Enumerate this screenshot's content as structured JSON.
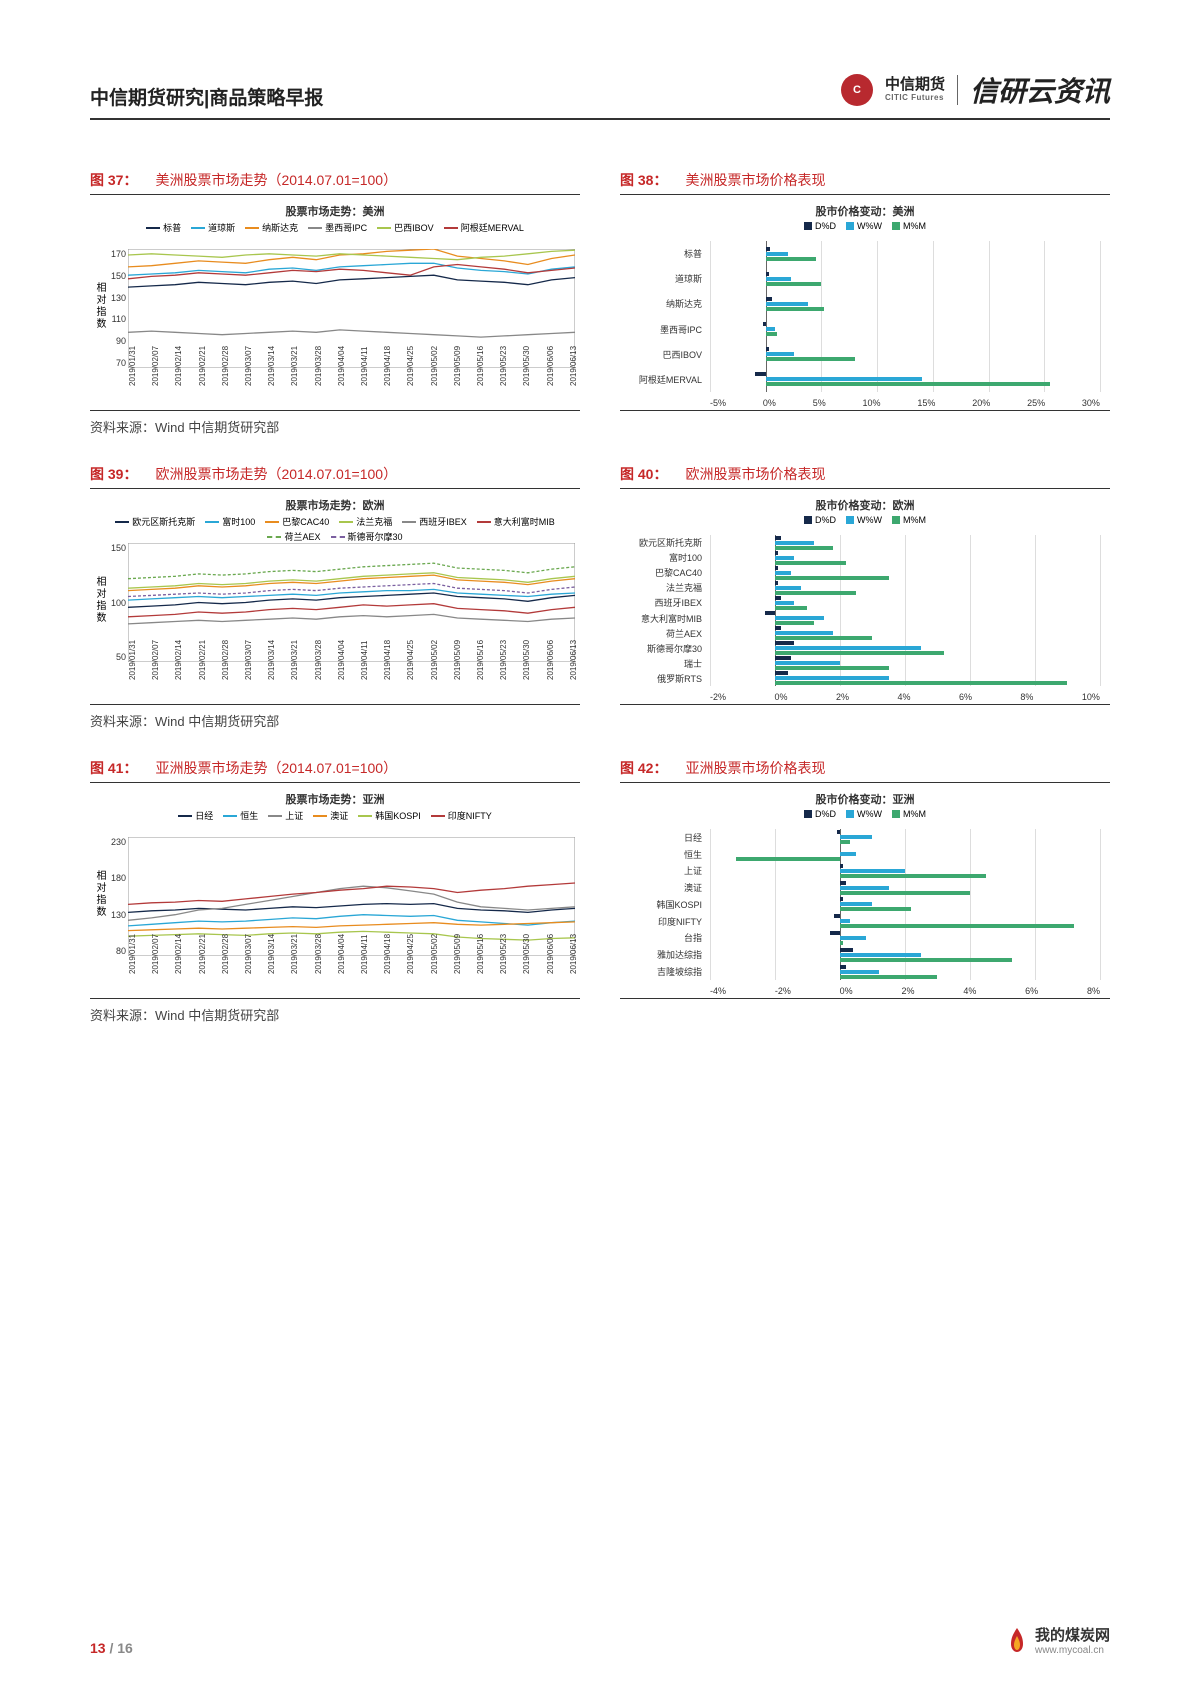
{
  "header": {
    "title": "中信期货研究|商品策略早报",
    "logo_main": "中信期货",
    "logo_sub": "CITIC Futures",
    "brand": "信研云资讯"
  },
  "colors": {
    "accent": "#c62828",
    "dd": "#15294a",
    "ww": "#2aa7d6",
    "mm": "#3da86f",
    "grid": "#dddddd",
    "series": {
      "sp": "#15294a",
      "dow": "#2aa7d6",
      "nasdaq": "#e88c1f",
      "ipc": "#888888",
      "ibov": "#a8c64e",
      "merval": "#b33a3a",
      "stoxx": "#15294a",
      "ftse": "#2aa7d6",
      "cac": "#e88c1f",
      "dax": "#a8c64e",
      "ibex": "#888888",
      "mib": "#b33a3a",
      "aex": "#6aa84f",
      "smi": "#7b5fa0",
      "nikkei": "#15294a",
      "hsi": "#2aa7d6",
      "sse": "#888888",
      "asx": "#e88c1f",
      "kospi": "#a8c64e",
      "nifty": "#b33a3a"
    }
  },
  "source_label": "资料来源：Wind 中信期货研究部",
  "x_dates": [
    "2019/01/31",
    "2019/02/07",
    "2019/02/14",
    "2019/02/21",
    "2019/02/28",
    "2019/03/07",
    "2019/03/14",
    "2019/03/21",
    "2019/03/28",
    "2019/04/04",
    "2019/04/11",
    "2019/04/18",
    "2019/04/25",
    "2019/05/02",
    "2019/05/09",
    "2019/05/16",
    "2019/05/23",
    "2019/05/30",
    "2019/06/06",
    "2019/06/13"
  ],
  "fig37": {
    "num": "图 37：",
    "title": "美洲股票市场走势（2014.07.01=100）",
    "inner_title": "股票市场走势：美洲",
    "y_label": "相对指数",
    "ylim": [
      70,
      170
    ],
    "ytick_step": 20,
    "legend": [
      {
        "label": "标普",
        "color": "#15294a"
      },
      {
        "label": "道琼斯",
        "color": "#2aa7d6"
      },
      {
        "label": "纳斯达克",
        "color": "#e88c1f"
      },
      {
        "label": "墨西哥IPC",
        "color": "#888888"
      },
      {
        "label": "巴西IBOV",
        "color": "#a8c64e"
      },
      {
        "label": "阿根廷MERVAL",
        "color": "#b33a3a"
      }
    ],
    "series": {
      "标普": [
        138,
        139,
        140,
        142,
        141,
        140,
        142,
        143,
        141,
        144,
        145,
        146,
        147,
        148,
        144,
        143,
        142,
        140,
        144,
        146
      ],
      "道琼斯": [
        148,
        149,
        150,
        152,
        151,
        150,
        153,
        154,
        152,
        155,
        156,
        157,
        158,
        158,
        154,
        152,
        151,
        149,
        153,
        155
      ],
      "纳斯达克": [
        155,
        156,
        158,
        160,
        159,
        158,
        161,
        163,
        161,
        165,
        166,
        168,
        169,
        170,
        164,
        162,
        160,
        157,
        162,
        165
      ],
      "墨西哥IPC": [
        100,
        101,
        100,
        99,
        98,
        99,
        100,
        101,
        100,
        102,
        101,
        100,
        99,
        98,
        97,
        96,
        97,
        98,
        99,
        100
      ],
      "巴西IBOV": [
        165,
        166,
        165,
        164,
        163,
        165,
        166,
        165,
        164,
        166,
        165,
        164,
        163,
        162,
        161,
        163,
        164,
        166,
        168,
        169
      ],
      "阿根廷MERVAL": [
        145,
        147,
        148,
        150,
        149,
        148,
        150,
        152,
        151,
        153,
        152,
        150,
        148,
        155,
        157,
        155,
        153,
        150,
        152,
        154
      ]
    }
  },
  "fig38": {
    "num": "图 38：",
    "title": "美洲股票市场价格表现",
    "inner_title": "股市价格变动：美洲",
    "legend": [
      {
        "label": "D%D",
        "color": "#15294a"
      },
      {
        "label": "W%W",
        "color": "#2aa7d6"
      },
      {
        "label": "M%M",
        "color": "#3da86f"
      }
    ],
    "xlim": [
      -5,
      30
    ],
    "xtick_step": 5,
    "rows": [
      {
        "label": "标普",
        "dd": 0.4,
        "ww": 2.0,
        "mm": 4.5
      },
      {
        "label": "道琼斯",
        "dd": 0.3,
        "ww": 2.3,
        "mm": 5.0
      },
      {
        "label": "纳斯达克",
        "dd": 0.6,
        "ww": 3.8,
        "mm": 5.2
      },
      {
        "label": "墨西哥IPC",
        "dd": -0.2,
        "ww": 0.8,
        "mm": 1.0
      },
      {
        "label": "巴西IBOV",
        "dd": 0.3,
        "ww": 2.5,
        "mm": 8.0
      },
      {
        "label": "阿根廷MERVAL",
        "dd": -1.0,
        "ww": 14.0,
        "mm": 25.5
      }
    ]
  },
  "fig39": {
    "num": "图 39：",
    "title": "欧洲股票市场走势（2014.07.01=100）",
    "inner_title": "股票市场走势：欧洲",
    "y_label": "相对指数",
    "ylim": [
      50,
      150
    ],
    "ytick_step": 50,
    "legend": [
      {
        "label": "欧元区斯托克斯",
        "color": "#15294a"
      },
      {
        "label": "富时100",
        "color": "#2aa7d6"
      },
      {
        "label": "巴黎CAC40",
        "color": "#e88c1f"
      },
      {
        "label": "法兰克福",
        "color": "#a8c64e"
      },
      {
        "label": "西班牙IBEX",
        "color": "#888888"
      },
      {
        "label": "意大利富时MIB",
        "color": "#b33a3a"
      },
      {
        "label": "荷兰AEX",
        "color": "#6aa84f",
        "dash": true
      },
      {
        "label": "斯德哥尔摩30",
        "color": "#7b5fa0",
        "dash": true
      }
    ],
    "series": {
      "欧元区斯托克斯": [
        96,
        97,
        98,
        100,
        99,
        100,
        102,
        103,
        102,
        104,
        105,
        106,
        107,
        108,
        105,
        104,
        103,
        101,
        104,
        106
      ],
      "富时100": [
        102,
        103,
        104,
        105,
        104,
        105,
        106,
        107,
        106,
        108,
        109,
        110,
        110,
        111,
        108,
        107,
        106,
        105,
        107,
        108
      ],
      "巴黎CAC40": [
        110,
        111,
        112,
        114,
        113,
        114,
        116,
        117,
        116,
        118,
        120,
        121,
        122,
        123,
        119,
        118,
        117,
        115,
        118,
        120
      ],
      "法兰克福": [
        112,
        113,
        114,
        116,
        115,
        116,
        118,
        119,
        118,
        120,
        122,
        123,
        124,
        125,
        121,
        120,
        119,
        117,
        120,
        122
      ],
      "西班牙IBEX": [
        82,
        83,
        84,
        85,
        84,
        85,
        86,
        87,
        86,
        88,
        89,
        88,
        89,
        90,
        87,
        86,
        85,
        84,
        86,
        87
      ],
      "意大利富时MIB": [
        88,
        89,
        90,
        92,
        91,
        92,
        94,
        95,
        94,
        96,
        98,
        97,
        98,
        99,
        95,
        94,
        93,
        91,
        94,
        96
      ],
      "荷兰AEX": [
        120,
        121,
        122,
        124,
        123,
        124,
        126,
        127,
        126,
        128,
        130,
        131,
        132,
        133,
        129,
        128,
        127,
        125,
        128,
        130
      ],
      "斯德哥尔摩30": [
        105,
        106,
        107,
        108,
        107,
        108,
        110,
        111,
        110,
        112,
        113,
        114,
        115,
        116,
        112,
        111,
        110,
        108,
        111,
        113
      ]
    }
  },
  "fig40": {
    "num": "图 40：",
    "title": "欧洲股票市场价格表现",
    "inner_title": "股市价格变动：欧洲",
    "legend": [
      {
        "label": "D%D",
        "color": "#15294a"
      },
      {
        "label": "W%W",
        "color": "#2aa7d6"
      },
      {
        "label": "M%M",
        "color": "#3da86f"
      }
    ],
    "xlim": [
      -2,
      10
    ],
    "xtick_step": 2,
    "rows": [
      {
        "label": "欧元区斯托克斯",
        "dd": 0.2,
        "ww": 1.2,
        "mm": 1.8
      },
      {
        "label": "富时100",
        "dd": 0.1,
        "ww": 0.6,
        "mm": 2.2
      },
      {
        "label": "巴黎CAC40",
        "dd": 0.1,
        "ww": 0.5,
        "mm": 3.5
      },
      {
        "label": "法兰克福",
        "dd": 0.1,
        "ww": 0.8,
        "mm": 2.5
      },
      {
        "label": "西班牙IBEX",
        "dd": 0.2,
        "ww": 0.6,
        "mm": 1.0
      },
      {
        "label": "意大利富时MIB",
        "dd": -0.3,
        "ww": 1.5,
        "mm": 1.2
      },
      {
        "label": "荷兰AEX",
        "dd": 0.2,
        "ww": 1.8,
        "mm": 3.0
      },
      {
        "label": "斯德哥尔摩30",
        "dd": 0.6,
        "ww": 4.5,
        "mm": 5.2
      },
      {
        "label": "瑞士",
        "dd": 0.5,
        "ww": 2.0,
        "mm": 3.5
      },
      {
        "label": "俄罗斯RTS",
        "dd": 0.4,
        "ww": 3.5,
        "mm": 9.0
      }
    ]
  },
  "fig41": {
    "num": "图 41：",
    "title": "亚洲股票市场走势（2014.07.01=100）",
    "inner_title": "股票市场走势：亚洲",
    "y_label": "相对指数",
    "ylim": [
      80,
      230
    ],
    "ytick_step": 50,
    "legend": [
      {
        "label": "日经",
        "color": "#15294a"
      },
      {
        "label": "恒生",
        "color": "#2aa7d6"
      },
      {
        "label": "上证",
        "color": "#888888"
      },
      {
        "label": "澳证",
        "color": "#e88c1f"
      },
      {
        "label": "韩国KOSPI",
        "color": "#a8c64e"
      },
      {
        "label": "印度NIFTY",
        "color": "#b33a3a"
      }
    ],
    "series": {
      "日经": [
        135,
        137,
        138,
        140,
        139,
        138,
        140,
        142,
        141,
        143,
        145,
        146,
        145,
        146,
        140,
        138,
        137,
        135,
        138,
        140
      ],
      "恒生": [
        118,
        120,
        122,
        124,
        123,
        124,
        126,
        128,
        127,
        130,
        132,
        131,
        130,
        131,
        125,
        123,
        121,
        119,
        122,
        124
      ],
      "上证": [
        125,
        128,
        132,
        138,
        140,
        145,
        150,
        155,
        160,
        165,
        168,
        166,
        162,
        158,
        148,
        142,
        140,
        138,
        140,
        142
      ],
      "澳证": [
        112,
        113,
        114,
        115,
        114,
        115,
        116,
        117,
        116,
        118,
        119,
        120,
        121,
        122,
        120,
        119,
        120,
        121,
        122,
        123
      ],
      "韩国KOSPI": [
        105,
        106,
        107,
        108,
        107,
        106,
        108,
        109,
        108,
        110,
        111,
        110,
        109,
        108,
        104,
        102,
        101,
        100,
        102,
        103
      ],
      "印度NIFTY": [
        145,
        147,
        148,
        150,
        149,
        152,
        155,
        158,
        160,
        163,
        165,
        168,
        167,
        165,
        160,
        163,
        165,
        168,
        170,
        172
      ]
    }
  },
  "fig42": {
    "num": "图 42：",
    "title": "亚洲股票市场价格表现",
    "inner_title": "股市价格变动：亚洲",
    "legend": [
      {
        "label": "D%D",
        "color": "#15294a"
      },
      {
        "label": "W%W",
        "color": "#2aa7d6"
      },
      {
        "label": "M%M",
        "color": "#3da86f"
      }
    ],
    "xlim": [
      -4,
      8
    ],
    "xtick_step": 2,
    "rows": [
      {
        "label": "日经",
        "dd": -0.1,
        "ww": 1.0,
        "mm": 0.3
      },
      {
        "label": "恒生",
        "dd": 0.0,
        "ww": 0.5,
        "mm": -3.2
      },
      {
        "label": "上证",
        "dd": 0.1,
        "ww": 2.0,
        "mm": 4.5
      },
      {
        "label": "澳证",
        "dd": 0.2,
        "ww": 1.5,
        "mm": 4.0
      },
      {
        "label": "韩国KOSPI",
        "dd": 0.1,
        "ww": 1.0,
        "mm": 2.2
      },
      {
        "label": "印度NIFTY",
        "dd": -0.2,
        "ww": 0.3,
        "mm": 7.2
      },
      {
        "label": "台指",
        "dd": -0.3,
        "ww": 0.8,
        "mm": 0.1
      },
      {
        "label": "雅加达综指",
        "dd": 0.4,
        "ww": 2.5,
        "mm": 5.3
      },
      {
        "label": "吉隆坡综指",
        "dd": 0.2,
        "ww": 1.2,
        "mm": 3.0
      }
    ]
  },
  "footer": {
    "page_current": "13",
    "page_total": "16",
    "site_name": "我的煤炭网",
    "site_url": "www.mycoal.cn"
  }
}
